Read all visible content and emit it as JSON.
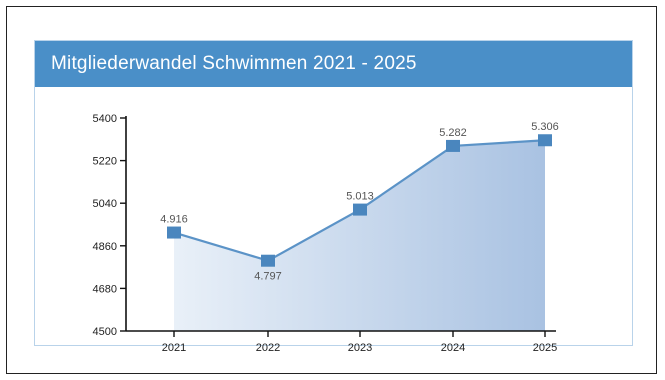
{
  "chart_data": {
    "type": "area",
    "title": "Mitgliederwandel Schwimmen 2021 - 2025",
    "xlabel": "",
    "ylabel": "",
    "categories": [
      "2021",
      "2022",
      "2023",
      "2024",
      "2025"
    ],
    "values": [
      4916,
      4797,
      5013,
      5282,
      5306
    ],
    "data_labels": [
      "4.916",
      "4.797",
      "5.013",
      "5.282",
      "5.306"
    ],
    "ylim": [
      4500,
      5400
    ],
    "yticks": [
      4500,
      4680,
      4860,
      5040,
      5220,
      5400
    ],
    "grid": false,
    "legend": "none",
    "colors": {
      "title_bg": "#4a8fc8",
      "marker": "#4a86be",
      "line": "#5b93c7",
      "area_start": "#e9f0f8",
      "area_end": "#a9c2e2",
      "card_border": "#b9d3ea"
    }
  }
}
